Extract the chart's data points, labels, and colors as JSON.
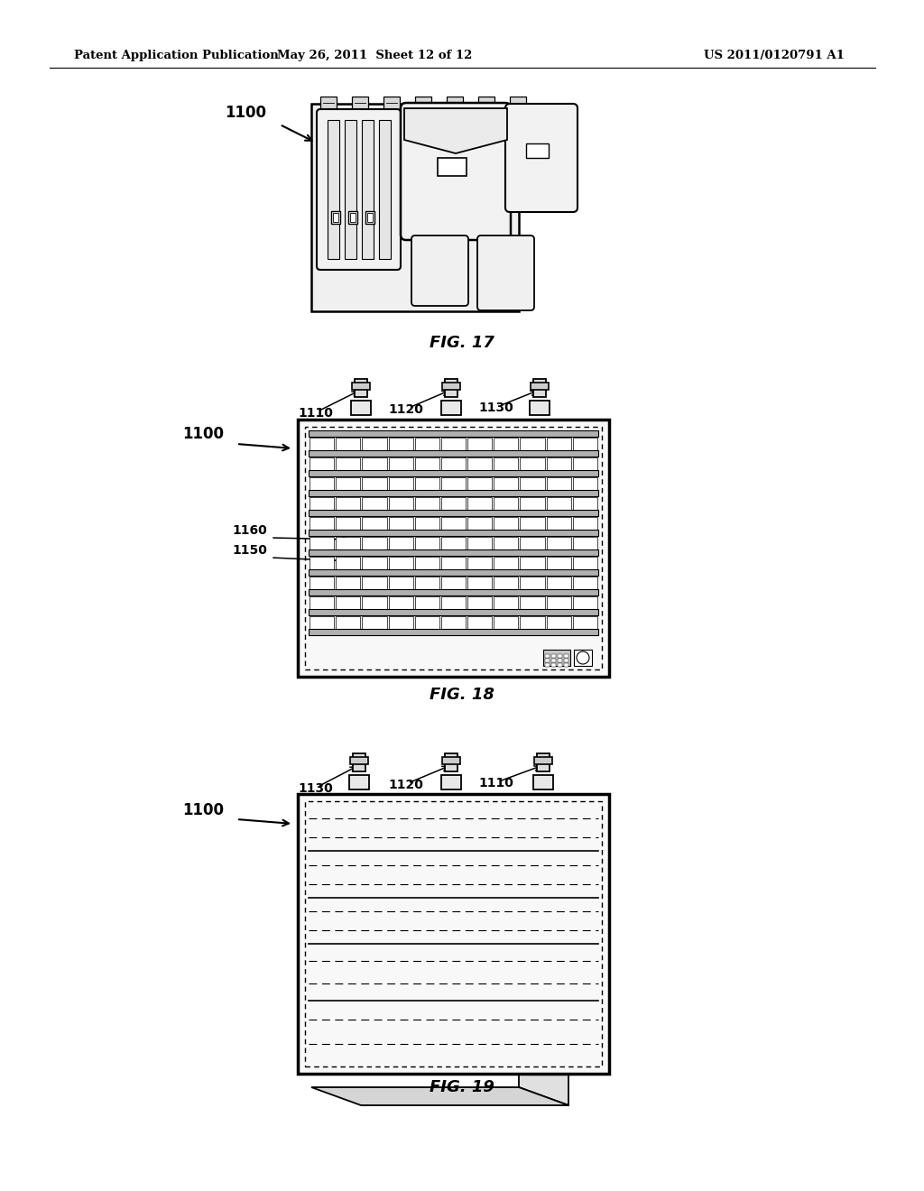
{
  "bg_color": "#ffffff",
  "header_left": "Patent Application Publication",
  "header_mid": "May 26, 2011  Sheet 12 of 12",
  "header_right": "US 2011/0120791 A1",
  "fig17_label": "FIG. 17",
  "fig18_label": "FIG. 18",
  "fig19_label": "FIG. 19",
  "ref_1100": "1100",
  "ref_1110": "1110",
  "ref_1120": "1120",
  "ref_1130": "1130",
  "ref_1150": "1150",
  "ref_1160": "1160"
}
